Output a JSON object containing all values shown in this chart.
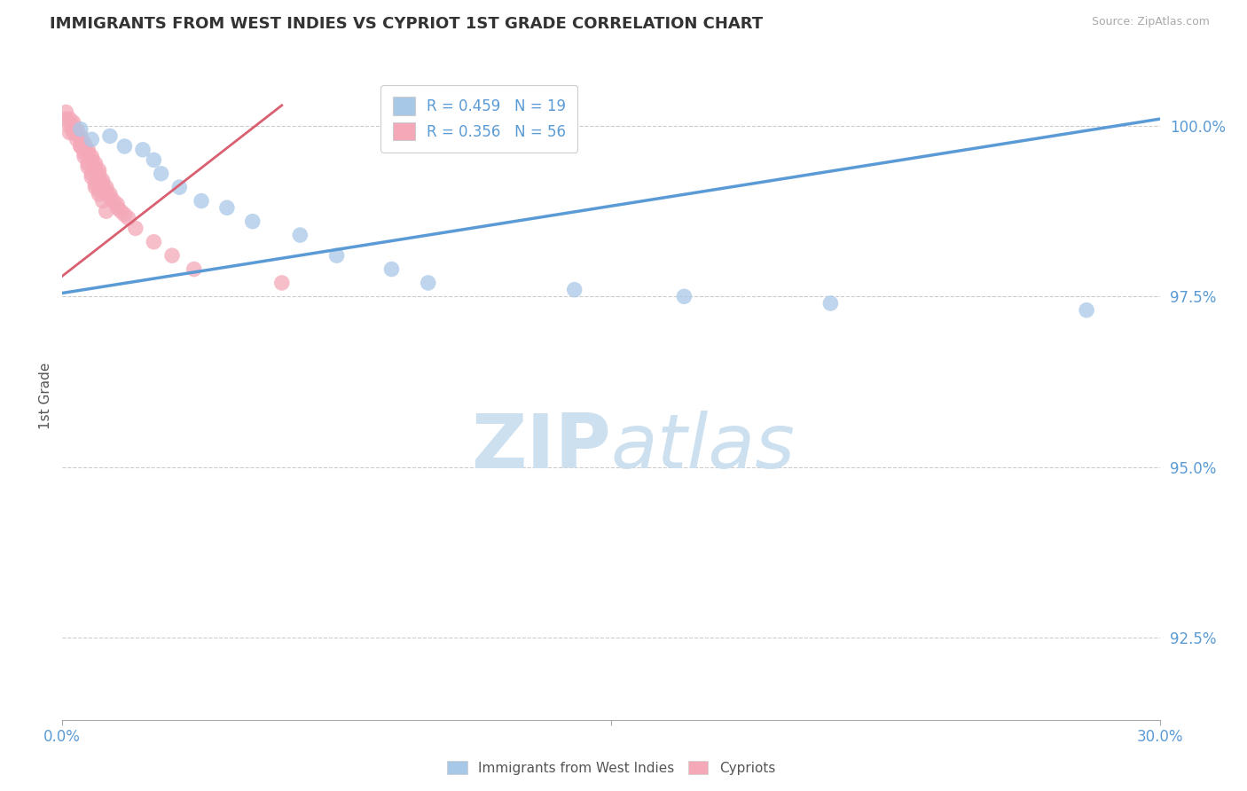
{
  "title": "IMMIGRANTS FROM WEST INDIES VS CYPRIOT 1ST GRADE CORRELATION CHART",
  "source": "Source: ZipAtlas.com",
  "ylabel": "1st Grade",
  "ytick_labels": [
    "100.0%",
    "97.5%",
    "95.0%",
    "92.5%"
  ],
  "ytick_values": [
    1.0,
    0.975,
    0.95,
    0.925
  ],
  "xlim": [
    0.0,
    0.3
  ],
  "ylim": [
    0.913,
    1.008
  ],
  "legend_blue_label": "Immigrants from West Indies",
  "legend_pink_label": "Cypriots",
  "R_blue": 0.459,
  "N_blue": 19,
  "R_pink": 0.356,
  "N_pink": 56,
  "blue_color": "#a8c8e8",
  "pink_color": "#f4a8b8",
  "blue_line_color": "#5b9bd5",
  "pink_line_color": "#d96070",
  "grid_color": "#cccccc",
  "watermark_color": "#cce0f0",
  "axis_label_color": "#5b9bd5",
  "blue_scatter_x": [
    0.005,
    0.013,
    0.017,
    0.022,
    0.025,
    0.027,
    0.032,
    0.045,
    0.065,
    0.075,
    0.09,
    0.1,
    0.17,
    0.21,
    0.28,
    0.14,
    0.052,
    0.038,
    0.008
  ],
  "blue_scatter_y": [
    0.9995,
    0.9985,
    0.997,
    0.9965,
    0.995,
    0.993,
    0.991,
    0.988,
    0.984,
    0.981,
    0.979,
    0.977,
    0.975,
    0.974,
    0.973,
    0.976,
    0.986,
    0.989,
    0.998
  ],
  "pink_scatter_x": [
    0.001,
    0.002,
    0.003,
    0.003,
    0.004,
    0.004,
    0.005,
    0.005,
    0.006,
    0.006,
    0.007,
    0.007,
    0.008,
    0.008,
    0.009,
    0.009,
    0.01,
    0.01,
    0.01,
    0.011,
    0.011,
    0.012,
    0.012,
    0.013,
    0.013,
    0.014,
    0.015,
    0.015,
    0.016,
    0.017,
    0.002,
    0.003,
    0.005,
    0.006,
    0.007,
    0.008,
    0.009,
    0.01,
    0.011,
    0.012,
    0.001,
    0.002,
    0.003,
    0.004,
    0.005,
    0.006,
    0.007,
    0.008,
    0.009,
    0.01,
    0.018,
    0.02,
    0.025,
    0.03,
    0.036,
    0.06
  ],
  "pink_scatter_y": [
    1.002,
    1.001,
    1.0005,
    1.0,
    0.9995,
    0.999,
    0.9985,
    0.998,
    0.9975,
    0.997,
    0.9965,
    0.996,
    0.9955,
    0.995,
    0.9945,
    0.994,
    0.9935,
    0.993,
    0.9925,
    0.992,
    0.9915,
    0.991,
    0.9905,
    0.99,
    0.9895,
    0.989,
    0.9885,
    0.988,
    0.9875,
    0.987,
    0.999,
    0.9995,
    0.997,
    0.9955,
    0.994,
    0.9925,
    0.991,
    0.9905,
    0.989,
    0.9875,
    1.001,
    1.0,
    0.999,
    0.998,
    0.997,
    0.996,
    0.9945,
    0.993,
    0.9915,
    0.99,
    0.9865,
    0.985,
    0.983,
    0.981,
    0.979,
    0.977
  ],
  "blue_line_x": [
    0.0,
    0.3
  ],
  "blue_line_y": [
    0.9755,
    1.001
  ],
  "pink_line_x": [
    0.0,
    0.06
  ],
  "pink_line_y": [
    0.978,
    1.003
  ]
}
